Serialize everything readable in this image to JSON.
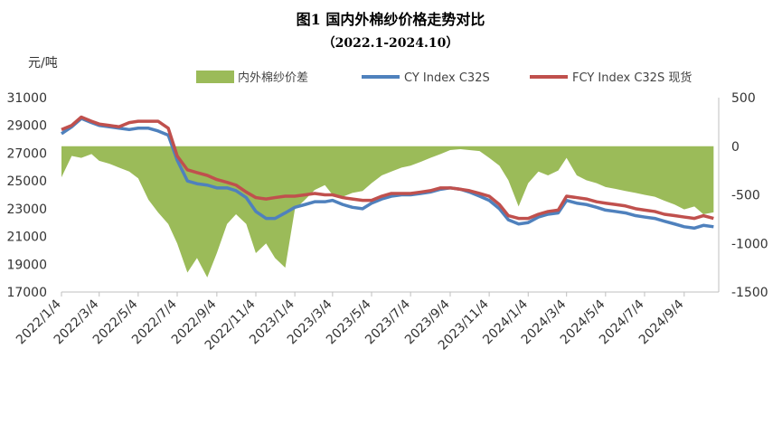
{
  "chart_data": {
    "type": "line",
    "title": "图1 国内外棉纱价格走势对比",
    "subtitle": "（2022.1-2024.10）",
    "y_unit_label": "元/吨",
    "y_left": {
      "min": 17000,
      "max": 31000,
      "ticks": [
        31000,
        29000,
        27000,
        25000,
        23000,
        21000,
        19000,
        17000
      ]
    },
    "y_right": {
      "min": -1500,
      "max": 500,
      "ticks": [
        500,
        0,
        -500,
        -1000,
        -1500
      ]
    },
    "x_ticks": [
      "2022/1/4",
      "2022/3/4",
      "2022/5/4",
      "2022/7/4",
      "2022/9/4",
      "2022/11/4",
      "2023/1/4",
      "2023/3/4",
      "2023/5/4",
      "2023/7/4",
      "2023/9/4",
      "2023/11/4",
      "2024/1/4",
      "2024/3/4",
      "2024/5/4",
      "2024/7/4",
      "2024/9/4"
    ],
    "legend_position": "top",
    "series": [
      {
        "name": "内外棉纱价差",
        "type": "area",
        "axis": "right",
        "color": "#9BBB59",
        "x": [
          "2022/1/4",
          "2022/1/20",
          "2022/2/4",
          "2022/2/20",
          "2022/3/4",
          "2022/3/20",
          "2022/4/4",
          "2022/4/20",
          "2022/5/4",
          "2022/5/20",
          "2022/6/4",
          "2022/6/20",
          "2022/7/4",
          "2022/7/20",
          "2022/8/4",
          "2022/8/20",
          "2022/9/4",
          "2022/9/20",
          "2022/10/4",
          "2022/10/20",
          "2022/11/4",
          "2022/11/20",
          "2022/12/4",
          "2022/12/20",
          "2023/1/4",
          "2023/1/20",
          "2023/2/4",
          "2023/2/20",
          "2023/3/4",
          "2023/3/20",
          "2023/4/4",
          "2023/4/20",
          "2023/5/4",
          "2023/5/20",
          "2023/6/4",
          "2023/6/20",
          "2023/7/4",
          "2023/7/20",
          "2023/8/4",
          "2023/8/20",
          "2023/9/4",
          "2023/9/20",
          "2023/10/4",
          "2023/10/20",
          "2023/11/4",
          "2023/11/20",
          "2023/12/4",
          "2023/12/20",
          "2024/1/4",
          "2024/1/20",
          "2024/2/4",
          "2024/2/20",
          "2024/3/4",
          "2024/3/20",
          "2024/4/4",
          "2024/4/20",
          "2024/5/4",
          "2024/5/20",
          "2024/6/4",
          "2024/6/20",
          "2024/7/4",
          "2024/7/20",
          "2024/8/4",
          "2024/8/20",
          "2024/9/4",
          "2024/9/20",
          "2024/10/4",
          "2024/10/20"
        ],
        "values": [
          -320,
          -100,
          -120,
          -80,
          -150,
          -180,
          -220,
          -260,
          -330,
          -550,
          -680,
          -800,
          -1000,
          -1300,
          -1150,
          -1350,
          -1100,
          -800,
          -700,
          -800,
          -1100,
          -1000,
          -1150,
          -1250,
          -650,
          -550,
          -450,
          -400,
          -500,
          -520,
          -480,
          -460,
          -380,
          -300,
          -260,
          -220,
          -200,
          -160,
          -120,
          -80,
          -40,
          -30,
          -40,
          -50,
          -120,
          -200,
          -350,
          -620,
          -380,
          -260,
          -300,
          -250,
          -120,
          -300,
          -350,
          -380,
          -420,
          -440,
          -460,
          -480,
          -500,
          -520,
          -560,
          -600,
          -650,
          -620,
          -700,
          -680
        ]
      },
      {
        "name": "CY Index C32S",
        "axis": "left",
        "color": "#4F81BD",
        "x": [
          "2022/1/4",
          "2022/1/20",
          "2022/2/4",
          "2022/2/20",
          "2022/3/4",
          "2022/3/20",
          "2022/4/4",
          "2022/4/20",
          "2022/5/4",
          "2022/5/20",
          "2022/6/4",
          "2022/6/20",
          "2022/7/4",
          "2022/7/20",
          "2022/8/4",
          "2022/8/20",
          "2022/9/4",
          "2022/9/20",
          "2022/10/4",
          "2022/10/20",
          "2022/11/4",
          "2022/11/20",
          "2022/12/4",
          "2022/12/20",
          "2023/1/4",
          "2023/1/20",
          "2023/2/4",
          "2023/2/20",
          "2023/3/4",
          "2023/3/20",
          "2023/4/4",
          "2023/4/20",
          "2023/5/4",
          "2023/5/20",
          "2023/6/4",
          "2023/6/20",
          "2023/7/4",
          "2023/7/20",
          "2023/8/4",
          "2023/8/20",
          "2023/9/4",
          "2023/9/20",
          "2023/10/4",
          "2023/10/20",
          "2023/11/4",
          "2023/11/20",
          "2023/12/4",
          "2023/12/20",
          "2024/1/4",
          "2024/1/20",
          "2024/2/4",
          "2024/2/20",
          "2024/3/4",
          "2024/3/20",
          "2024/4/4",
          "2024/4/20",
          "2024/5/4",
          "2024/5/20",
          "2024/6/4",
          "2024/6/20",
          "2024/7/4",
          "2024/7/20",
          "2024/8/4",
          "2024/8/20",
          "2024/9/4",
          "2024/9/20",
          "2024/10/4",
          "2024/10/20"
        ],
        "values": [
          28400,
          28900,
          29500,
          29200,
          29000,
          28900,
          28800,
          28700,
          28800,
          28800,
          28600,
          28300,
          26500,
          25000,
          24800,
          24700,
          24500,
          24500,
          24300,
          23800,
          22800,
          22300,
          22300,
          22700,
          23100,
          23300,
          23500,
          23500,
          23600,
          23300,
          23100,
          23000,
          23400,
          23700,
          23900,
          24000,
          24000,
          24100,
          24200,
          24400,
          24500,
          24400,
          24200,
          23900,
          23600,
          23000,
          22200,
          21900,
          22000,
          22400,
          22600,
          22700,
          23600,
          23400,
          23300,
          23100,
          22900,
          22800,
          22700,
          22500,
          22400,
          22300,
          22100,
          21900,
          21700,
          21600,
          21800,
          21700
        ]
      },
      {
        "name": "FCY Index C32S 现货",
        "axis": "left",
        "color": "#C0504D",
        "x": [
          "2022/1/4",
          "2022/1/20",
          "2022/2/4",
          "2022/2/20",
          "2022/3/4",
          "2022/3/20",
          "2022/4/4",
          "2022/4/20",
          "2022/5/4",
          "2022/5/20",
          "2022/6/4",
          "2022/6/20",
          "2022/7/4",
          "2022/7/20",
          "2022/8/4",
          "2022/8/20",
          "2022/9/4",
          "2022/9/20",
          "2022/10/4",
          "2022/10/20",
          "2022/11/4",
          "2022/11/20",
          "2022/12/4",
          "2022/12/20",
          "2023/1/4",
          "2023/1/20",
          "2023/2/4",
          "2023/2/20",
          "2023/3/4",
          "2023/3/20",
          "2023/4/4",
          "2023/4/20",
          "2023/5/4",
          "2023/5/20",
          "2023/6/4",
          "2023/6/20",
          "2023/7/4",
          "2023/7/20",
          "2023/8/4",
          "2023/8/20",
          "2023/9/4",
          "2023/9/20",
          "2023/10/4",
          "2023/10/20",
          "2023/11/4",
          "2023/11/20",
          "2023/12/4",
          "2023/12/20",
          "2024/1/4",
          "2024/1/20",
          "2024/2/4",
          "2024/2/20",
          "2024/3/4",
          "2024/3/20",
          "2024/4/4",
          "2024/4/20",
          "2024/5/4",
          "2024/5/20",
          "2024/6/4",
          "2024/6/20",
          "2024/7/4",
          "2024/7/20",
          "2024/8/4",
          "2024/8/20",
          "2024/9/4",
          "2024/9/20",
          "2024/10/4",
          "2024/10/20"
        ],
        "values": [
          28700,
          29000,
          29600,
          29300,
          29100,
          29000,
          28900,
          29200,
          29300,
          29300,
          29300,
          28800,
          26800,
          25800,
          25600,
          25400,
          25100,
          24900,
          24700,
          24200,
          23800,
          23700,
          23800,
          23900,
          23900,
          24000,
          24100,
          24000,
          24000,
          23800,
          23700,
          23600,
          23600,
          23900,
          24100,
          24100,
          24100,
          24200,
          24300,
          24500,
          24500,
          24400,
          24300,
          24100,
          23900,
          23300,
          22500,
          22300,
          22300,
          22600,
          22800,
          22900,
          23900,
          23800,
          23700,
          23500,
          23400,
          23300,
          23200,
          23000,
          22900,
          22800,
          22600,
          22500,
          22400,
          22300,
          22500,
          22300
        ]
      }
    ]
  }
}
